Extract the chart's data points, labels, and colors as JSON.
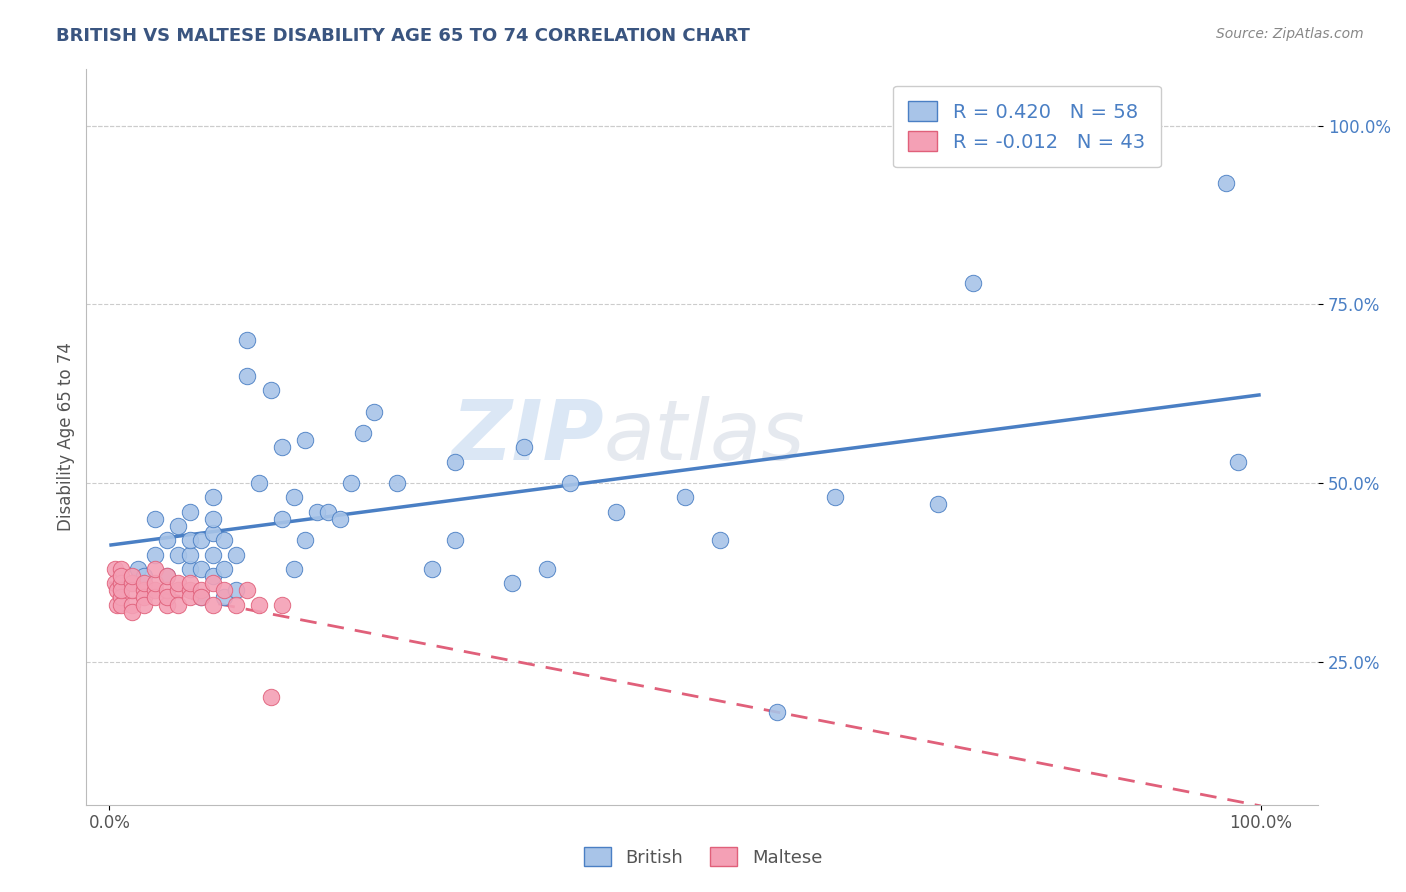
{
  "title": "BRITISH VS MALTESE DISABILITY AGE 65 TO 74 CORRELATION CHART",
  "source_text": "Source: ZipAtlas.com",
  "ylabel": "Disability Age 65 to 74",
  "british_R": 0.42,
  "british_N": 58,
  "maltese_R": -0.012,
  "maltese_N": 43,
  "british_color": "#A8C4E8",
  "maltese_color": "#F4A0B5",
  "british_line_color": "#4A7FC4",
  "maltese_line_color": "#E0607A",
  "watermark_zip": "ZIP",
  "watermark_atlas": "atlas",
  "background_color": "#FFFFFF",
  "grid_color": "#CCCCCC",
  "legend_label_color": "#4A7FC4",
  "title_color": "#3A5580",
  "source_color": "#888888",
  "british_x": [
    0.025,
    0.03,
    0.04,
    0.04,
    0.05,
    0.05,
    0.06,
    0.06,
    0.07,
    0.07,
    0.07,
    0.07,
    0.08,
    0.08,
    0.08,
    0.09,
    0.09,
    0.09,
    0.09,
    0.09,
    0.1,
    0.1,
    0.1,
    0.11,
    0.11,
    0.12,
    0.12,
    0.13,
    0.14,
    0.15,
    0.15,
    0.16,
    0.16,
    0.17,
    0.17,
    0.18,
    0.19,
    0.2,
    0.21,
    0.22,
    0.23,
    0.25,
    0.28,
    0.3,
    0.35,
    0.36,
    0.38,
    0.4,
    0.44,
    0.5,
    0.53,
    0.58,
    0.63,
    0.72,
    0.75,
    0.97,
    0.98,
    0.3
  ],
  "british_y": [
    0.38,
    0.37,
    0.4,
    0.45,
    0.37,
    0.42,
    0.4,
    0.44,
    0.38,
    0.4,
    0.42,
    0.46,
    0.34,
    0.38,
    0.42,
    0.37,
    0.4,
    0.43,
    0.45,
    0.48,
    0.34,
    0.38,
    0.42,
    0.35,
    0.4,
    0.65,
    0.7,
    0.5,
    0.63,
    0.45,
    0.55,
    0.38,
    0.48,
    0.42,
    0.56,
    0.46,
    0.46,
    0.45,
    0.5,
    0.57,
    0.6,
    0.5,
    0.38,
    0.53,
    0.36,
    0.55,
    0.38,
    0.5,
    0.46,
    0.48,
    0.42,
    0.18,
    0.48,
    0.47,
    0.78,
    0.92,
    0.53,
    0.42
  ],
  "maltese_x": [
    0.005,
    0.005,
    0.007,
    0.007,
    0.01,
    0.01,
    0.01,
    0.01,
    0.01,
    0.01,
    0.02,
    0.02,
    0.02,
    0.02,
    0.02,
    0.03,
    0.03,
    0.03,
    0.03,
    0.04,
    0.04,
    0.04,
    0.04,
    0.05,
    0.05,
    0.05,
    0.05,
    0.06,
    0.06,
    0.06,
    0.07,
    0.07,
    0.07,
    0.08,
    0.08,
    0.09,
    0.09,
    0.1,
    0.11,
    0.12,
    0.13,
    0.14,
    0.15
  ],
  "maltese_y": [
    0.38,
    0.36,
    0.33,
    0.35,
    0.38,
    0.36,
    0.34,
    0.33,
    0.35,
    0.37,
    0.36,
    0.33,
    0.32,
    0.35,
    0.37,
    0.35,
    0.34,
    0.33,
    0.36,
    0.35,
    0.34,
    0.36,
    0.38,
    0.33,
    0.35,
    0.34,
    0.37,
    0.35,
    0.33,
    0.36,
    0.35,
    0.34,
    0.36,
    0.35,
    0.34,
    0.33,
    0.36,
    0.35,
    0.33,
    0.35,
    0.33,
    0.2,
    0.33
  ],
  "y_tick_positions": [
    0.25,
    0.5,
    0.75,
    1.0
  ],
  "y_tick_labels": [
    "25.0%",
    "50.0%",
    "75.0%",
    "100.0%"
  ],
  "x_tick_positions": [
    0.0,
    1.0
  ],
  "x_tick_labels": [
    "0.0%",
    "100.0%"
  ],
  "xlim": [
    -0.02,
    1.05
  ],
  "ylim": [
    0.05,
    1.08
  ]
}
